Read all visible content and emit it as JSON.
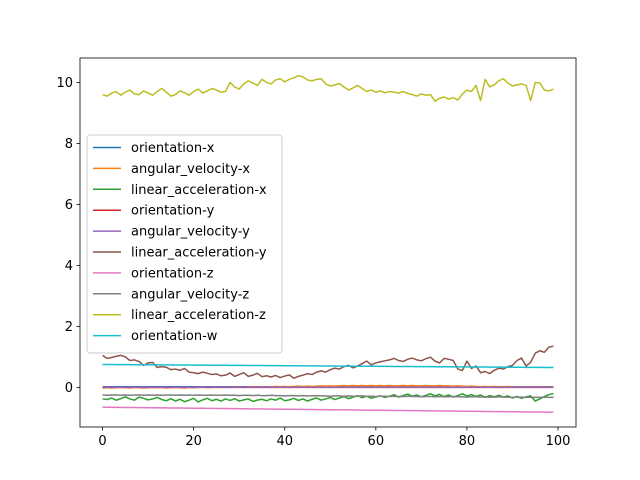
{
  "chart_data": {
    "type": "line",
    "title": "",
    "xlabel": "",
    "ylabel": "",
    "xlim": [
      -4.95,
      103.95
    ],
    "ylim": [
      -1.3,
      10.8
    ],
    "xticks": [
      0,
      20,
      40,
      60,
      80,
      100
    ],
    "yticks": [
      0,
      2,
      4,
      6,
      8,
      10
    ],
    "grid": false,
    "legend_position": "center-left",
    "x": [
      0,
      1,
      2,
      3,
      4,
      5,
      6,
      7,
      8,
      9,
      10,
      11,
      12,
      13,
      14,
      15,
      16,
      17,
      18,
      19,
      20,
      21,
      22,
      23,
      24,
      25,
      26,
      27,
      28,
      29,
      30,
      31,
      32,
      33,
      34,
      35,
      36,
      37,
      38,
      39,
      40,
      41,
      42,
      43,
      44,
      45,
      46,
      47,
      48,
      49,
      50,
      51,
      52,
      53,
      54,
      55,
      56,
      57,
      58,
      59,
      60,
      61,
      62,
      63,
      64,
      65,
      66,
      67,
      68,
      69,
      70,
      71,
      72,
      73,
      74,
      75,
      76,
      77,
      78,
      79,
      80,
      81,
      82,
      83,
      84,
      85,
      86,
      87,
      88,
      89,
      90,
      91,
      92,
      93,
      94,
      95,
      96,
      97,
      98,
      99
    ],
    "series": [
      {
        "name": "orientation-x",
        "color": "#1f77b4",
        "values": [
          0.02,
          0.02,
          0.02,
          0.02,
          0.02,
          0.02,
          0.02,
          0.02,
          0.02,
          0.02,
          0.02,
          0.02,
          0.02,
          0.02,
          0.02,
          0.02,
          0.02,
          0.02,
          0.02,
          0.02,
          0.02,
          0.02,
          0.02,
          0.02,
          0.02,
          0.02,
          0.02,
          0.02,
          0.02,
          0.02,
          0.02,
          0.02,
          0.02,
          0.02,
          0.02,
          0.02,
          0.02,
          0.02,
          0.02,
          0.02,
          0.02,
          0.02,
          0.02,
          0.02,
          0.02,
          0.02,
          0.02,
          0.02,
          0.02,
          0.02,
          0.02,
          0.02,
          0.02,
          0.02,
          0.02,
          0.02,
          0.02,
          0.02,
          0.02,
          0.02,
          0.02,
          0.02,
          0.02,
          0.02,
          0.02,
          0.02,
          0.02,
          0.02,
          0.02,
          0.02,
          0.02,
          0.02,
          0.02,
          0.02,
          0.02,
          0.02,
          0.02,
          0.02,
          0.02,
          0.02,
          0.02,
          0.02,
          0.02,
          0.02,
          0.02,
          0.02,
          0.02,
          0.02,
          0.02,
          0.02,
          0.02,
          0.02,
          0.02,
          0.02,
          0.02,
          0.02,
          0.02,
          0.02,
          0.02,
          0.02
        ]
      },
      {
        "name": "angular_velocity-x",
        "color": "#ff7f0e",
        "values": [
          -0.02,
          -0.01,
          -0.02,
          -0.01,
          0,
          -0.01,
          -0.02,
          0,
          -0.01,
          -0.02,
          -0.01,
          0,
          -0.01,
          0,
          -0.02,
          -0.01,
          0,
          -0.01,
          -0.02,
          0,
          -0.01,
          0,
          0.01,
          -0.01,
          0,
          0.01,
          0,
          0.01,
          0,
          0.01,
          0.02,
          0,
          0.01,
          0.02,
          0.01,
          0.02,
          0.01,
          0.02,
          0.03,
          0.02,
          0.03,
          0.02,
          0.03,
          0.04,
          0.03,
          0.04,
          0.03,
          0.04,
          0.05,
          0.04,
          0.05,
          0.04,
          0.05,
          0.06,
          0.05,
          0.06,
          0.05,
          0.06,
          0.05,
          0.06,
          0.05,
          0.06,
          0.05,
          0.06,
          0.05,
          0.05,
          0.06,
          0.05,
          0.06,
          0.05,
          0.05,
          0.06,
          0.05,
          0.05,
          0.06,
          0.05,
          0.05,
          0.04,
          0.05,
          0.04,
          0.03,
          0.04,
          0.03,
          0.02,
          0.03,
          0.02,
          0.03,
          0.02,
          0.02,
          0.03,
          0.02,
          0.01,
          0.02,
          0.01,
          0.02,
          0.01,
          0.02,
          0.01,
          0.01,
          0.02
        ]
      },
      {
        "name": "linear_acceleration-x",
        "color": "#2ca02c",
        "values": [
          -0.38,
          -0.4,
          -0.35,
          -0.42,
          -0.37,
          -0.31,
          -0.38,
          -0.42,
          -0.32,
          -0.36,
          -0.41,
          -0.38,
          -0.33,
          -0.4,
          -0.44,
          -0.37,
          -0.45,
          -0.39,
          -0.47,
          -0.42,
          -0.36,
          -0.48,
          -0.41,
          -0.36,
          -0.44,
          -0.39,
          -0.45,
          -0.38,
          -0.43,
          -0.37,
          -0.45,
          -0.41,
          -0.38,
          -0.46,
          -0.42,
          -0.39,
          -0.44,
          -0.38,
          -0.42,
          -0.35,
          -0.44,
          -0.41,
          -0.36,
          -0.43,
          -0.38,
          -0.45,
          -0.39,
          -0.35,
          -0.42,
          -0.38,
          -0.33,
          -0.4,
          -0.35,
          -0.3,
          -0.37,
          -0.32,
          -0.27,
          -0.34,
          -0.29,
          -0.36,
          -0.31,
          -0.28,
          -0.33,
          -0.29,
          -0.24,
          -0.32,
          -0.27,
          -0.22,
          -0.29,
          -0.25,
          -0.31,
          -0.26,
          -0.21,
          -0.28,
          -0.23,
          -0.3,
          -0.25,
          -0.32,
          -0.27,
          -0.21,
          -0.28,
          -0.24,
          -0.3,
          -0.25,
          -0.33,
          -0.27,
          -0.31,
          -0.26,
          -0.32,
          -0.28,
          -0.35,
          -0.3,
          -0.36,
          -0.31,
          -0.28,
          -0.45,
          -0.38,
          -0.3,
          -0.24,
          -0.2
        ]
      },
      {
        "name": "orientation-y",
        "color": "#d62728",
        "values": [
          0,
          0,
          0,
          0,
          0,
          0,
          0,
          0,
          0,
          0,
          0,
          0,
          0,
          0,
          0,
          0,
          0,
          0,
          0,
          0,
          0,
          0,
          0,
          0,
          0,
          0,
          0,
          0,
          0,
          0,
          0,
          0,
          0,
          0,
          0,
          0,
          0,
          0,
          0,
          0,
          0,
          0,
          0,
          0,
          0,
          0,
          0,
          0,
          0,
          0,
          0,
          0,
          0,
          0,
          0,
          0,
          0,
          0,
          0,
          0,
          0,
          0,
          0,
          0,
          0,
          0,
          0,
          0,
          0,
          0,
          0,
          0,
          0,
          0,
          0,
          0,
          0,
          0,
          0,
          0,
          0,
          0,
          0,
          0,
          0,
          0,
          0,
          0,
          0,
          0,
          0,
          0,
          0,
          0,
          0,
          0,
          0,
          0,
          0,
          0
        ]
      },
      {
        "name": "angular_velocity-y",
        "color": "#9467bd",
        "values": [
          0.01,
          0,
          0.01,
          0,
          0.01,
          0,
          0.01,
          0,
          0.01,
          0,
          0.01,
          0,
          0.01,
          0,
          0.01,
          0,
          0.01,
          0,
          0.01,
          0,
          0.01,
          0,
          0.01,
          0,
          0.01,
          0,
          0.01,
          0,
          0.01,
          0,
          0.01,
          0,
          0.01,
          0,
          0.01,
          0,
          0.01,
          0,
          0.01,
          0,
          0.01,
          0,
          0.01,
          0,
          0.01,
          0,
          0.01,
          0,
          0.01,
          0,
          0.01,
          0,
          0.01,
          0,
          0.01,
          0,
          0.01,
          0,
          0.01,
          0,
          0.01,
          0,
          0.01,
          0,
          0.01,
          0,
          0.01,
          0,
          0.01,
          0,
          0.01,
          0,
          0.01,
          0,
          0.01,
          0,
          0.01,
          0,
          0.01,
          0,
          0.01,
          0,
          0.01,
          0,
          0.01,
          0,
          0.01,
          0,
          0.01,
          0,
          0.01,
          0,
          0.01,
          0,
          0.01,
          0,
          0.01,
          0,
          0.01,
          0
        ]
      },
      {
        "name": "linear_acceleration-y",
        "color": "#8c564b",
        "values": [
          1.05,
          0.95,
          0.98,
          1.02,
          1.05,
          1.0,
          0.88,
          0.9,
          0.85,
          0.72,
          0.8,
          0.82,
          0.65,
          0.68,
          0.66,
          0.58,
          0.6,
          0.56,
          0.62,
          0.5,
          0.48,
          0.45,
          0.5,
          0.46,
          0.42,
          0.44,
          0.38,
          0.4,
          0.47,
          0.36,
          0.42,
          0.48,
          0.36,
          0.4,
          0.46,
          0.35,
          0.38,
          0.34,
          0.39,
          0.32,
          0.37,
          0.41,
          0.3,
          0.36,
          0.4,
          0.45,
          0.42,
          0.5,
          0.54,
          0.5,
          0.58,
          0.63,
          0.6,
          0.68,
          0.72,
          0.64,
          0.7,
          0.78,
          0.86,
          0.74,
          0.8,
          0.84,
          0.87,
          0.9,
          0.95,
          0.88,
          0.85,
          0.92,
          0.96,
          0.9,
          0.87,
          0.94,
          0.99,
          0.86,
          0.8,
          0.95,
          0.92,
          0.88,
          0.6,
          0.55,
          0.86,
          0.62,
          0.7,
          0.48,
          0.52,
          0.45,
          0.56,
          0.63,
          0.6,
          0.68,
          0.72,
          0.88,
          0.96,
          0.7,
          0.82,
          1.12,
          1.2,
          1.15,
          1.32,
          1.35
        ]
      },
      {
        "name": "orientation-z",
        "color": "#e377c2",
        "values": [
          -0.65,
          -0.652,
          -0.654,
          -0.655,
          -0.657,
          -0.659,
          -0.66,
          -0.662,
          -0.664,
          -0.665,
          -0.667,
          -0.669,
          -0.67,
          -0.672,
          -0.674,
          -0.675,
          -0.677,
          -0.679,
          -0.68,
          -0.682,
          -0.684,
          -0.685,
          -0.687,
          -0.689,
          -0.69,
          -0.692,
          -0.694,
          -0.695,
          -0.697,
          -0.699,
          -0.7,
          -0.702,
          -0.704,
          -0.705,
          -0.707,
          -0.709,
          -0.71,
          -0.712,
          -0.714,
          -0.715,
          -0.717,
          -0.719,
          -0.72,
          -0.722,
          -0.724,
          -0.725,
          -0.727,
          -0.729,
          -0.73,
          -0.732,
          -0.734,
          -0.735,
          -0.737,
          -0.739,
          -0.74,
          -0.742,
          -0.744,
          -0.745,
          -0.747,
          -0.749,
          -0.75,
          -0.752,
          -0.754,
          -0.755,
          -0.757,
          -0.759,
          -0.76,
          -0.762,
          -0.764,
          -0.765,
          -0.767,
          -0.769,
          -0.77,
          -0.772,
          -0.774,
          -0.775,
          -0.777,
          -0.779,
          -0.78,
          -0.782,
          -0.784,
          -0.785,
          -0.787,
          -0.789,
          -0.79,
          -0.792,
          -0.794,
          -0.795,
          -0.797,
          -0.799,
          -0.8,
          -0.802,
          -0.804,
          -0.805,
          -0.807,
          -0.809,
          -0.81,
          -0.812,
          -0.814,
          -0.815
        ]
      },
      {
        "name": "angular_velocity-z",
        "color": "#7f7f7f",
        "values": [
          -0.25,
          -0.26,
          -0.25,
          -0.25,
          -0.26,
          -0.25,
          -0.26,
          -0.25,
          -0.25,
          -0.26,
          -0.25,
          -0.26,
          -0.25,
          -0.26,
          -0.25,
          -0.25,
          -0.26,
          -0.25,
          -0.26,
          -0.25,
          -0.26,
          -0.25,
          -0.26,
          -0.26,
          -0.25,
          -0.26,
          -0.26,
          -0.25,
          -0.26,
          -0.26,
          -0.27,
          -0.26,
          -0.26,
          -0.27,
          -0.26,
          -0.27,
          -0.27,
          -0.26,
          -0.27,
          -0.27,
          -0.28,
          -0.27,
          -0.27,
          -0.28,
          -0.27,
          -0.28,
          -0.28,
          -0.27,
          -0.28,
          -0.28,
          -0.29,
          -0.28,
          -0.28,
          -0.29,
          -0.28,
          -0.29,
          -0.29,
          -0.28,
          -0.29,
          -0.29,
          -0.3,
          -0.29,
          -0.29,
          -0.3,
          -0.29,
          -0.3,
          -0.3,
          -0.29,
          -0.3,
          -0.3,
          -0.31,
          -0.3,
          -0.3,
          -0.31,
          -0.3,
          -0.31,
          -0.31,
          -0.3,
          -0.31,
          -0.31,
          -0.32,
          -0.31,
          -0.31,
          -0.32,
          -0.31,
          -0.32,
          -0.32,
          -0.31,
          -0.32,
          -0.32,
          -0.33,
          -0.32,
          -0.32,
          -0.33,
          -0.32,
          -0.33,
          -0.33,
          -0.32,
          -0.33,
          -0.33
        ]
      },
      {
        "name": "linear_acceleration-z",
        "color": "#bcbd22",
        "values": [
          9.6,
          9.55,
          9.65,
          9.7,
          9.58,
          9.68,
          9.75,
          9.62,
          9.6,
          9.72,
          9.65,
          9.58,
          9.7,
          9.8,
          9.68,
          9.55,
          9.6,
          9.72,
          9.66,
          9.58,
          9.7,
          9.78,
          9.65,
          9.72,
          9.8,
          9.75,
          9.68,
          9.7,
          10.0,
          9.85,
          9.78,
          9.95,
          10.05,
          9.98,
          9.9,
          10.1,
          10.0,
          9.95,
          10.08,
          10.12,
          10.02,
          10.1,
          10.15,
          10.22,
          10.18,
          10.08,
          10.05,
          10.1,
          10.12,
          9.95,
          9.88,
          9.92,
          9.96,
          9.85,
          9.75,
          9.82,
          9.9,
          9.8,
          9.7,
          9.75,
          9.68,
          9.72,
          9.66,
          9.7,
          9.68,
          9.65,
          9.7,
          9.64,
          9.6,
          9.55,
          9.62,
          9.58,
          9.6,
          9.38,
          9.48,
          9.52,
          9.45,
          9.5,
          9.42,
          9.62,
          9.75,
          9.7,
          9.9,
          9.4,
          10.1,
          9.85,
          9.92,
          10.05,
          10.12,
          9.98,
          9.88,
          9.92,
          9.95,
          9.9,
          9.4,
          10.0,
          9.98,
          9.75,
          9.72,
          9.78
        ]
      },
      {
        "name": "orientation-w",
        "color": "#17becf",
        "values": [
          0.75,
          0.749,
          0.748,
          0.747,
          0.746,
          0.745,
          0.744,
          0.743,
          0.742,
          0.741,
          0.74,
          0.739,
          0.738,
          0.737,
          0.736,
          0.735,
          0.734,
          0.733,
          0.732,
          0.731,
          0.73,
          0.729,
          0.728,
          0.727,
          0.726,
          0.725,
          0.724,
          0.723,
          0.722,
          0.721,
          0.72,
          0.719,
          0.718,
          0.717,
          0.716,
          0.715,
          0.714,
          0.713,
          0.712,
          0.711,
          0.71,
          0.709,
          0.708,
          0.707,
          0.706,
          0.705,
          0.704,
          0.703,
          0.702,
          0.701,
          0.7,
          0.699,
          0.698,
          0.697,
          0.696,
          0.695,
          0.694,
          0.693,
          0.692,
          0.691,
          0.69,
          0.689,
          0.688,
          0.687,
          0.686,
          0.685,
          0.684,
          0.683,
          0.682,
          0.681,
          0.68,
          0.679,
          0.678,
          0.677,
          0.676,
          0.675,
          0.674,
          0.673,
          0.672,
          0.671,
          0.67,
          0.669,
          0.668,
          0.667,
          0.666,
          0.665,
          0.664,
          0.663,
          0.662,
          0.661,
          0.66,
          0.659,
          0.658,
          0.657,
          0.656,
          0.655,
          0.654,
          0.653,
          0.652,
          0.651
        ]
      }
    ]
  }
}
